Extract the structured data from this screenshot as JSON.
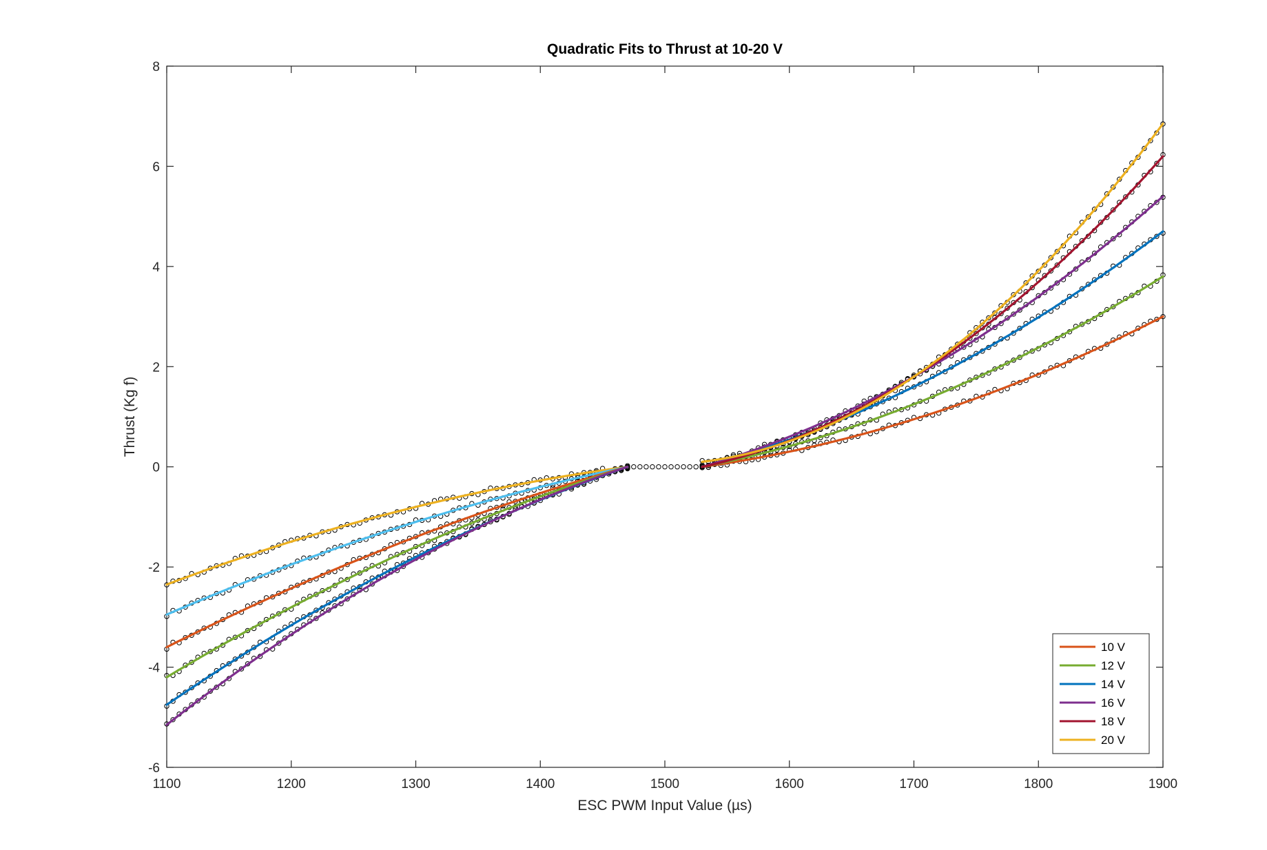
{
  "chart_data": {
    "type": "line",
    "title": "Quadratic Fits to Thrust at 10-20 V",
    "xlabel": "ESC PWM Input Value (µs)",
    "ylabel": "Thrust (Kg f)",
    "xlim": [
      1100,
      1900
    ],
    "ylim": [
      -6,
      8
    ],
    "xticks": [
      "1100",
      "1200",
      "1300",
      "1400",
      "1500",
      "1600",
      "1700",
      "1800",
      "1900"
    ],
    "yticks": [
      "-6",
      "-4",
      "-2",
      "0",
      "2",
      "4",
      "6",
      "8"
    ],
    "grid": false,
    "legend_position": "bottom-right",
    "deadband": [
      1470,
      1530
    ],
    "series": [
      {
        "name": "10 V",
        "color": "#D95319",
        "reverse": {
          "x": [
            1100,
            1300,
            1470
          ],
          "y": [
            -3.6,
            -1.4,
            0.0
          ]
        },
        "forward": {
          "x": [
            1530,
            1700,
            1900
          ],
          "y": [
            0.0,
            0.95,
            3.0
          ]
        }
      },
      {
        "name": "12 V",
        "color": "#77AC30",
        "reverse": {
          "x": [
            1100,
            1300,
            1470
          ],
          "y": [
            -4.2,
            -1.6,
            0.0
          ]
        },
        "forward": {
          "x": [
            1530,
            1700,
            1900
          ],
          "y": [
            0.0,
            1.25,
            3.8
          ]
        }
      },
      {
        "name": "14 V",
        "color": "#0072BD",
        "reverse": {
          "x": [
            1100,
            1300,
            1470
          ],
          "y": [
            -4.75,
            -1.8,
            0.0
          ]
        },
        "forward": {
          "x": [
            1530,
            1700,
            1900
          ],
          "y": [
            0.0,
            1.6,
            4.7
          ]
        }
      },
      {
        "name": "16 V",
        "color": "#7E2F8E",
        "reverse": {
          "x": [
            1100,
            1300,
            1470
          ],
          "y": [
            -5.15,
            -1.85,
            0.0
          ]
        },
        "forward": {
          "x": [
            1530,
            1700,
            1900
          ],
          "y": [
            0.0,
            1.8,
            5.4
          ]
        }
      },
      {
        "name": "18 V",
        "color": "#A2142F",
        "reverse": null,
        "forward": {
          "x": [
            1530,
            1700,
            1900
          ],
          "y": [
            0.0,
            1.8,
            6.2
          ]
        }
      },
      {
        "name": "20 V",
        "color": "#EDB120",
        "reverse": null,
        "forward": {
          "x": [
            1530,
            1700,
            1900
          ],
          "y": [
            0.1,
            1.8,
            6.85
          ]
        }
      }
    ],
    "extra_fits": [
      {
        "color": "#EDB120",
        "x": [
          1100,
          1300,
          1470
        ],
        "y": [
          -2.35,
          -0.8,
          0.0
        ]
      },
      {
        "color": "#4DBEEE",
        "x": [
          1100,
          1300,
          1470
        ],
        "y": [
          -2.95,
          -1.1,
          0.0
        ]
      }
    ],
    "measured_marker": "o",
    "measured_color": "#000000",
    "measured_step": 5,
    "measured_range": [
      1100,
      1900
    ]
  }
}
